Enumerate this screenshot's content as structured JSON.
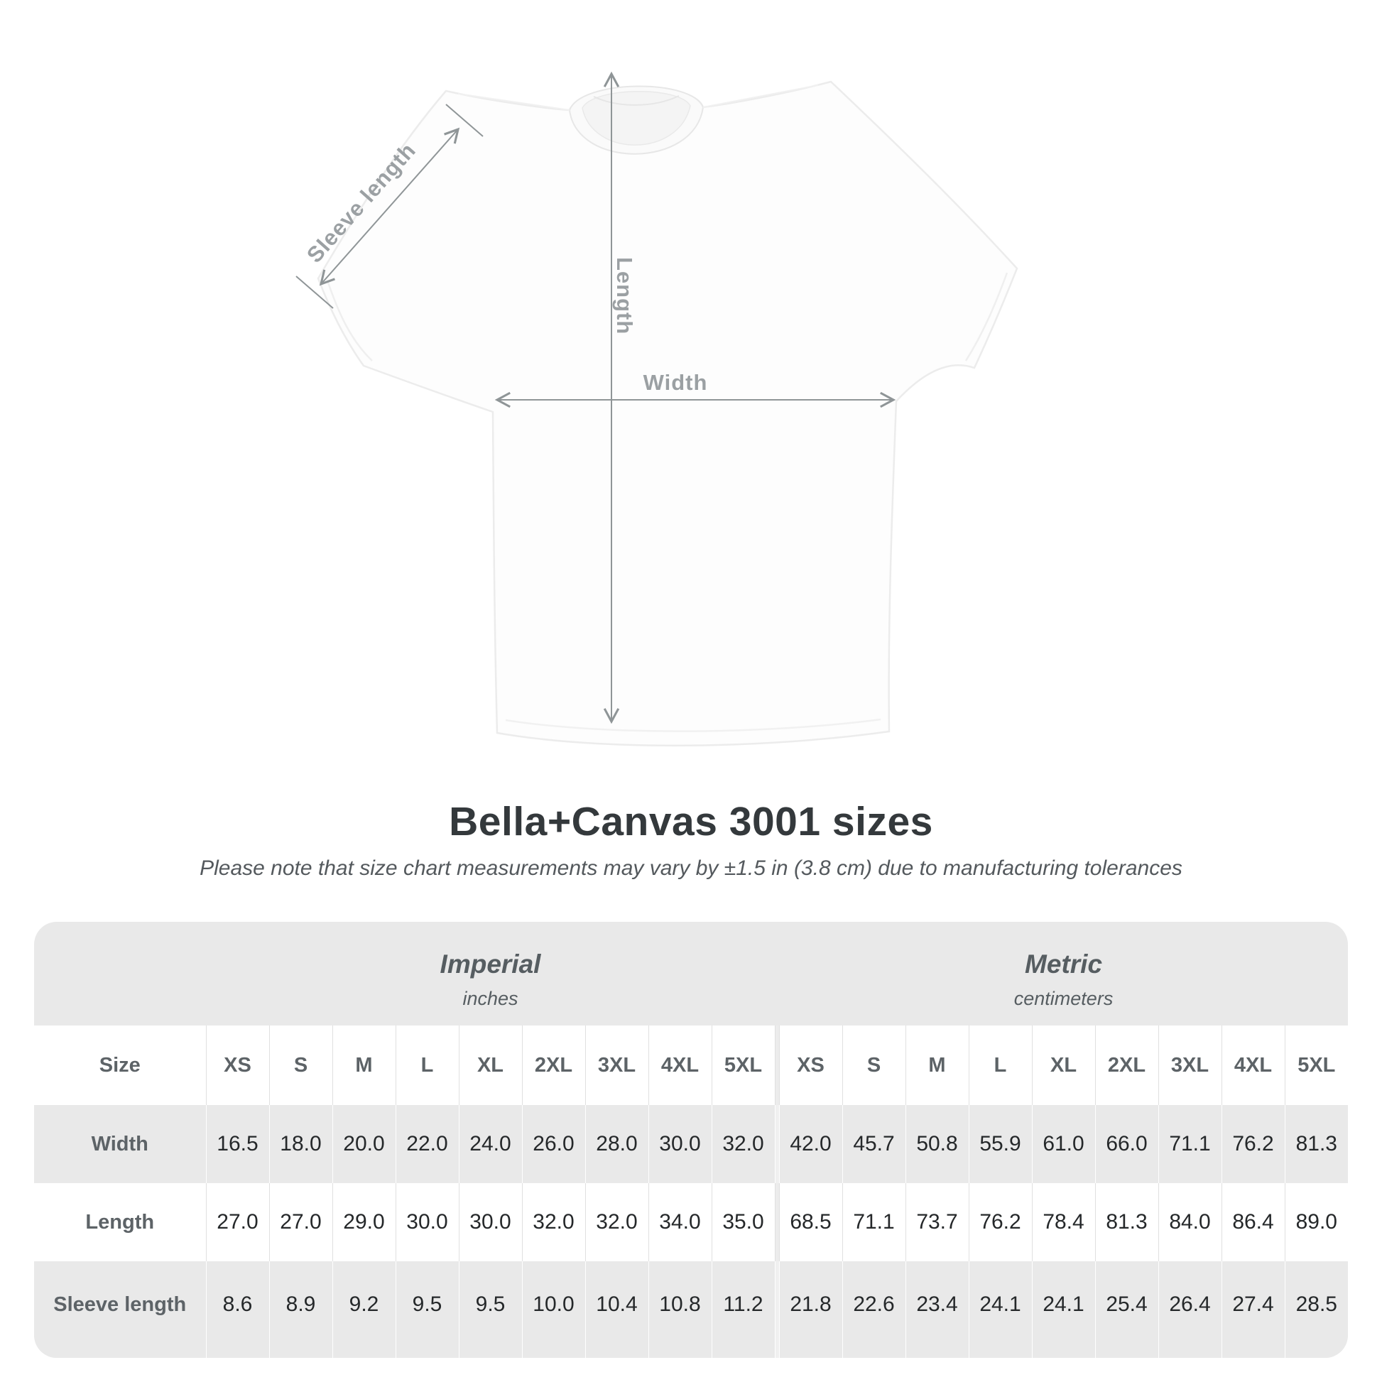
{
  "figure": {
    "labels": {
      "sleeve": "Sleeve length",
      "length": "Length",
      "width": "Width"
    },
    "arrow_color": "#8f9597",
    "label_color": "#9ba0a3",
    "shirt_color": "#fdfdfd"
  },
  "title": "Bella+Canvas 3001 sizes",
  "subtitle": "Please note that size chart measurements may vary by ±1.5 in (3.8 cm) due to manufacturing tolerances",
  "table": {
    "size_header": "Size",
    "sizes": [
      "XS",
      "S",
      "M",
      "L",
      "XL",
      "2XL",
      "3XL",
      "4XL",
      "5XL"
    ],
    "groups": [
      {
        "label": "Imperial",
        "unit": "inches"
      },
      {
        "label": "Metric",
        "unit": "centimeters"
      }
    ],
    "rows": [
      {
        "label": "Width",
        "imperial": [
          "16.5",
          "18.0",
          "20.0",
          "22.0",
          "24.0",
          "26.0",
          "28.0",
          "30.0",
          "32.0"
        ],
        "metric": [
          "42.0",
          "45.7",
          "50.8",
          "55.9",
          "61.0",
          "66.0",
          "71.1",
          "76.2",
          "81.3"
        ]
      },
      {
        "label": "Length",
        "imperial": [
          "27.0",
          "27.0",
          "29.0",
          "30.0",
          "30.0",
          "32.0",
          "32.0",
          "34.0",
          "35.0"
        ],
        "metric": [
          "68.5",
          "71.1",
          "73.7",
          "76.2",
          "78.4",
          "81.3",
          "84.0",
          "86.4",
          "89.0"
        ]
      },
      {
        "label": "Sleeve length",
        "imperial": [
          "8.6",
          "8.9",
          "9.2",
          "9.5",
          "9.5",
          "10.0",
          "10.4",
          "10.8",
          "11.2"
        ],
        "metric": [
          "21.8",
          "22.6",
          "23.4",
          "24.1",
          "24.1",
          "25.4",
          "26.4",
          "27.4",
          "28.5"
        ]
      }
    ],
    "colors": {
      "container_bg": "#e9e9e9",
      "row_white": "#ffffff",
      "header_text": "#5d6367",
      "value_text": "#25282a"
    }
  }
}
